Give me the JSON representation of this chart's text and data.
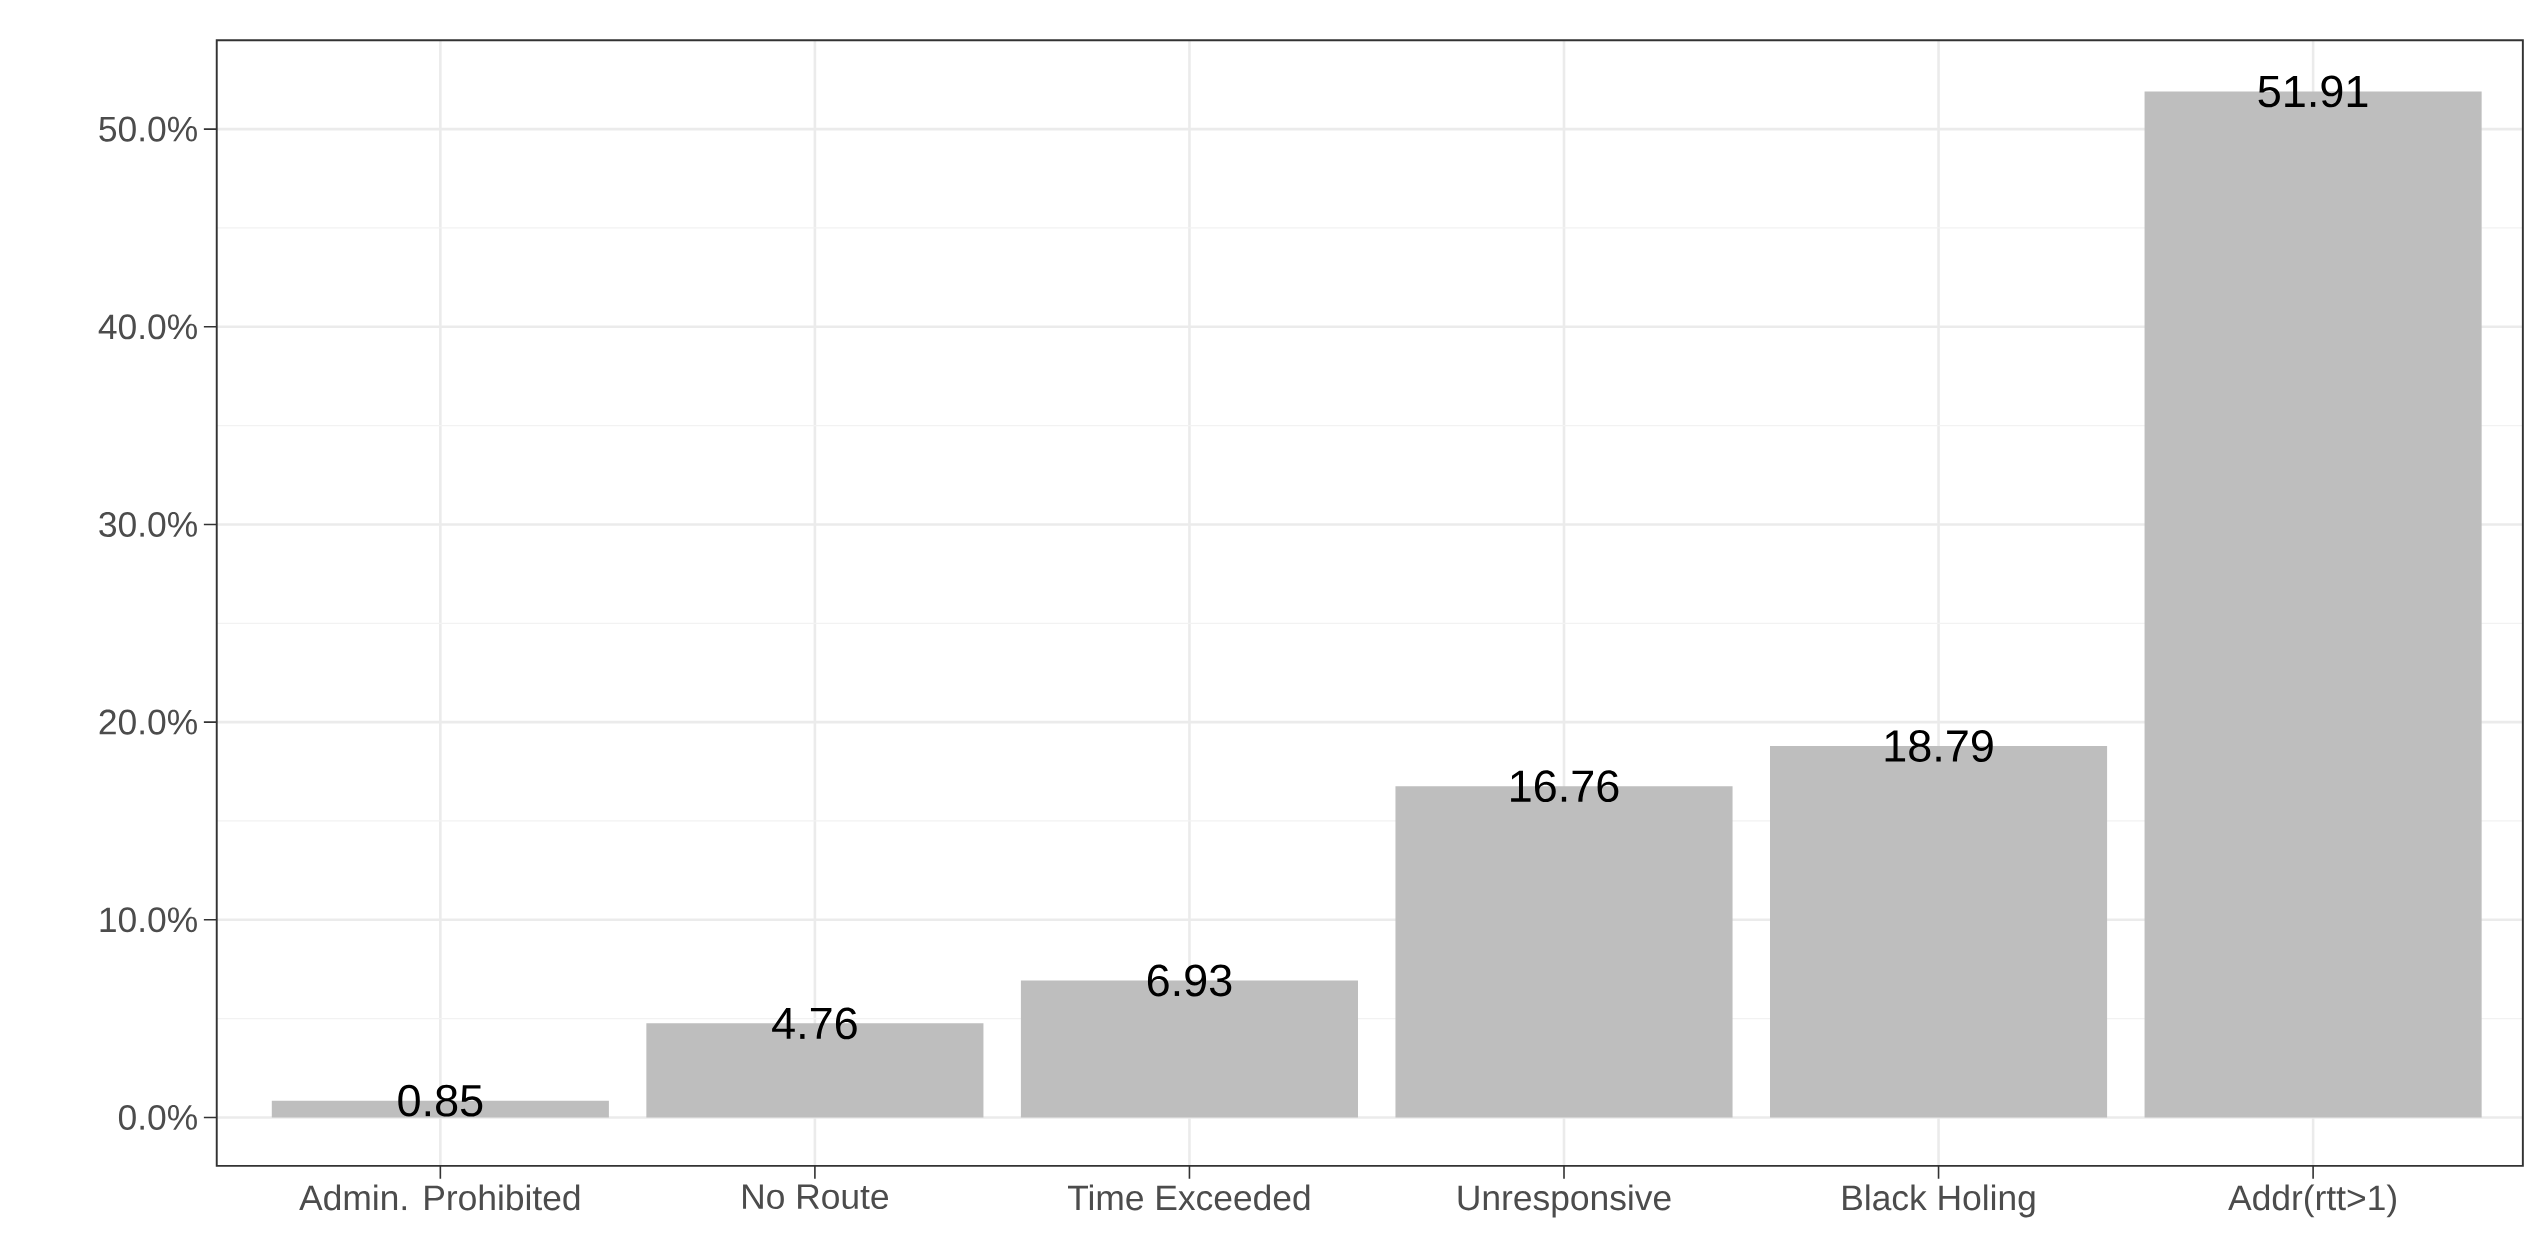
{
  "chart_data": {
    "type": "bar",
    "categories": [
      "Admin. Prohibited",
      "No Route",
      "Time Exceeded",
      "Unresponsive",
      "Black Holing",
      "Addr(rtt>1)"
    ],
    "values": [
      0.85,
      4.76,
      6.93,
      16.76,
      18.79,
      51.91
    ],
    "color": "#bebebe",
    "ylim": [
      -2.45,
      54.5
    ],
    "yticks": [
      {
        "value": 0,
        "label": "0.0%"
      },
      {
        "value": 10,
        "label": "10.0%"
      },
      {
        "value": 20,
        "label": "20.0%"
      },
      {
        "value": 30,
        "label": "30.0%"
      },
      {
        "value": 40,
        "label": "40.0%"
      },
      {
        "value": 50,
        "label": "50.0%"
      }
    ],
    "grid": true,
    "data_labels": true
  }
}
